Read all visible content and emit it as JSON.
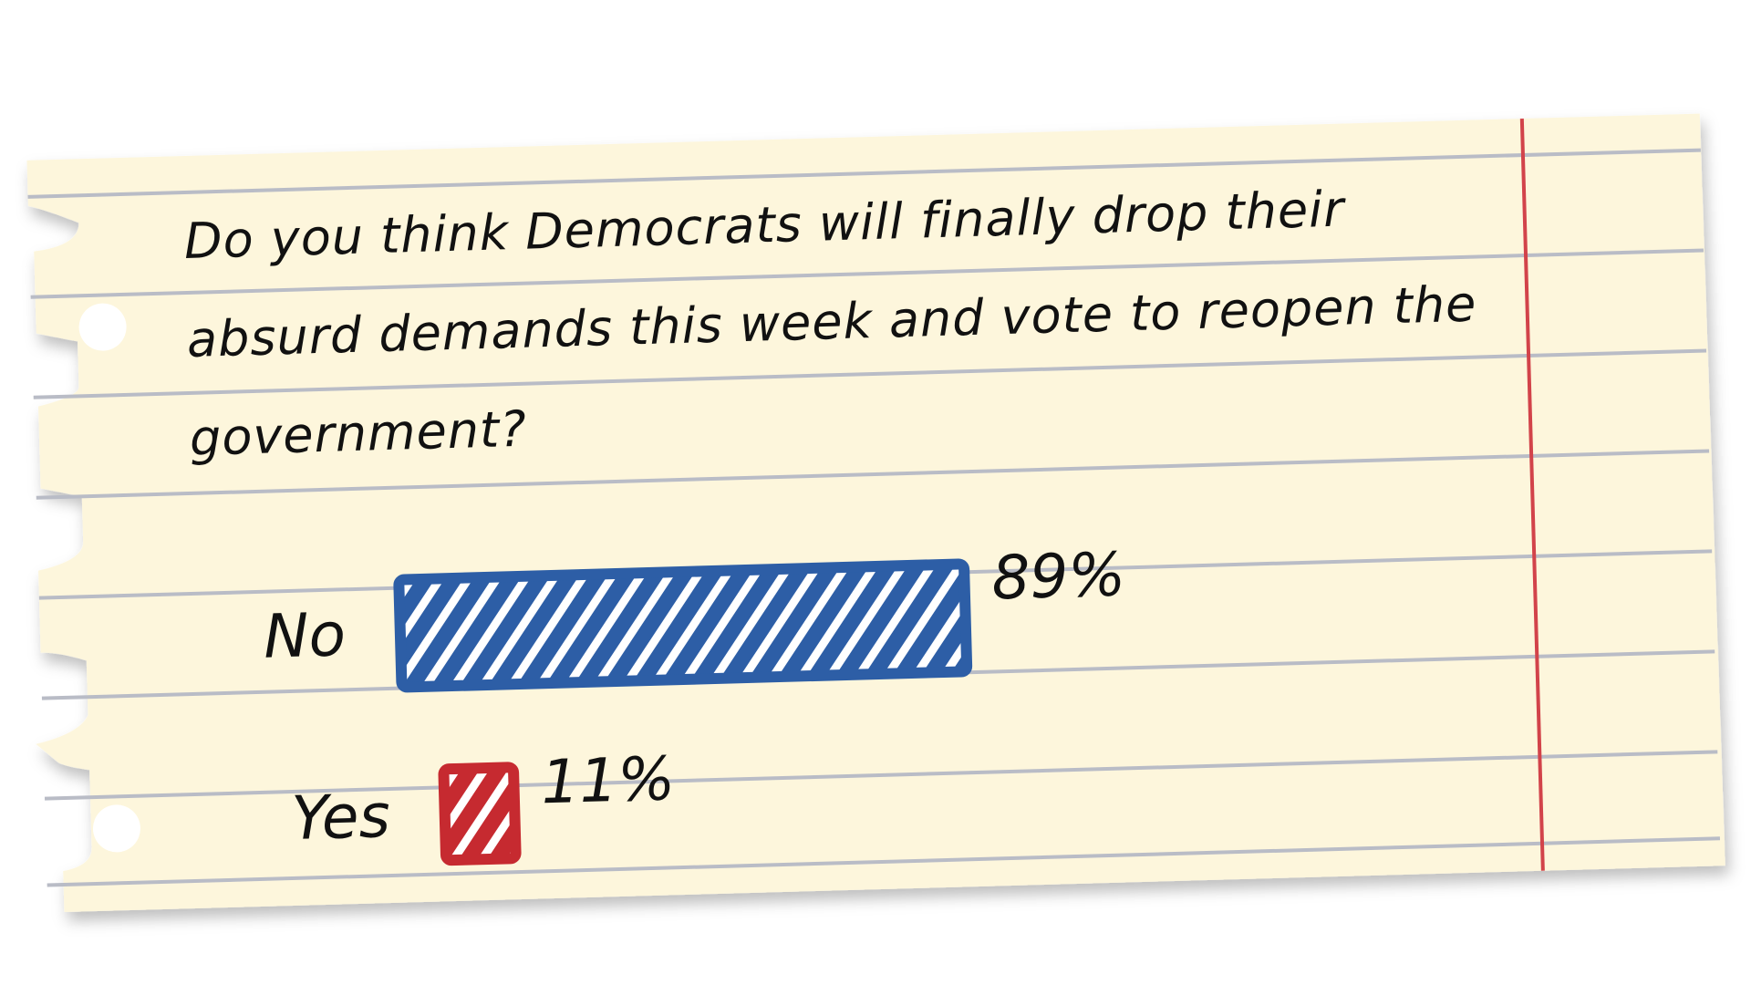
{
  "chart_data": {
    "type": "bar",
    "orientation": "horizontal",
    "title": "Do you think Democrats will finally drop their absurd demands this week and vote to reopen the government?",
    "categories": [
      "No",
      "Yes"
    ],
    "values": [
      89,
      11
    ],
    "value_labels": [
      "89%",
      "11%"
    ],
    "colors": [
      "#2d5ea6",
      "#c62a30"
    ]
  }
}
